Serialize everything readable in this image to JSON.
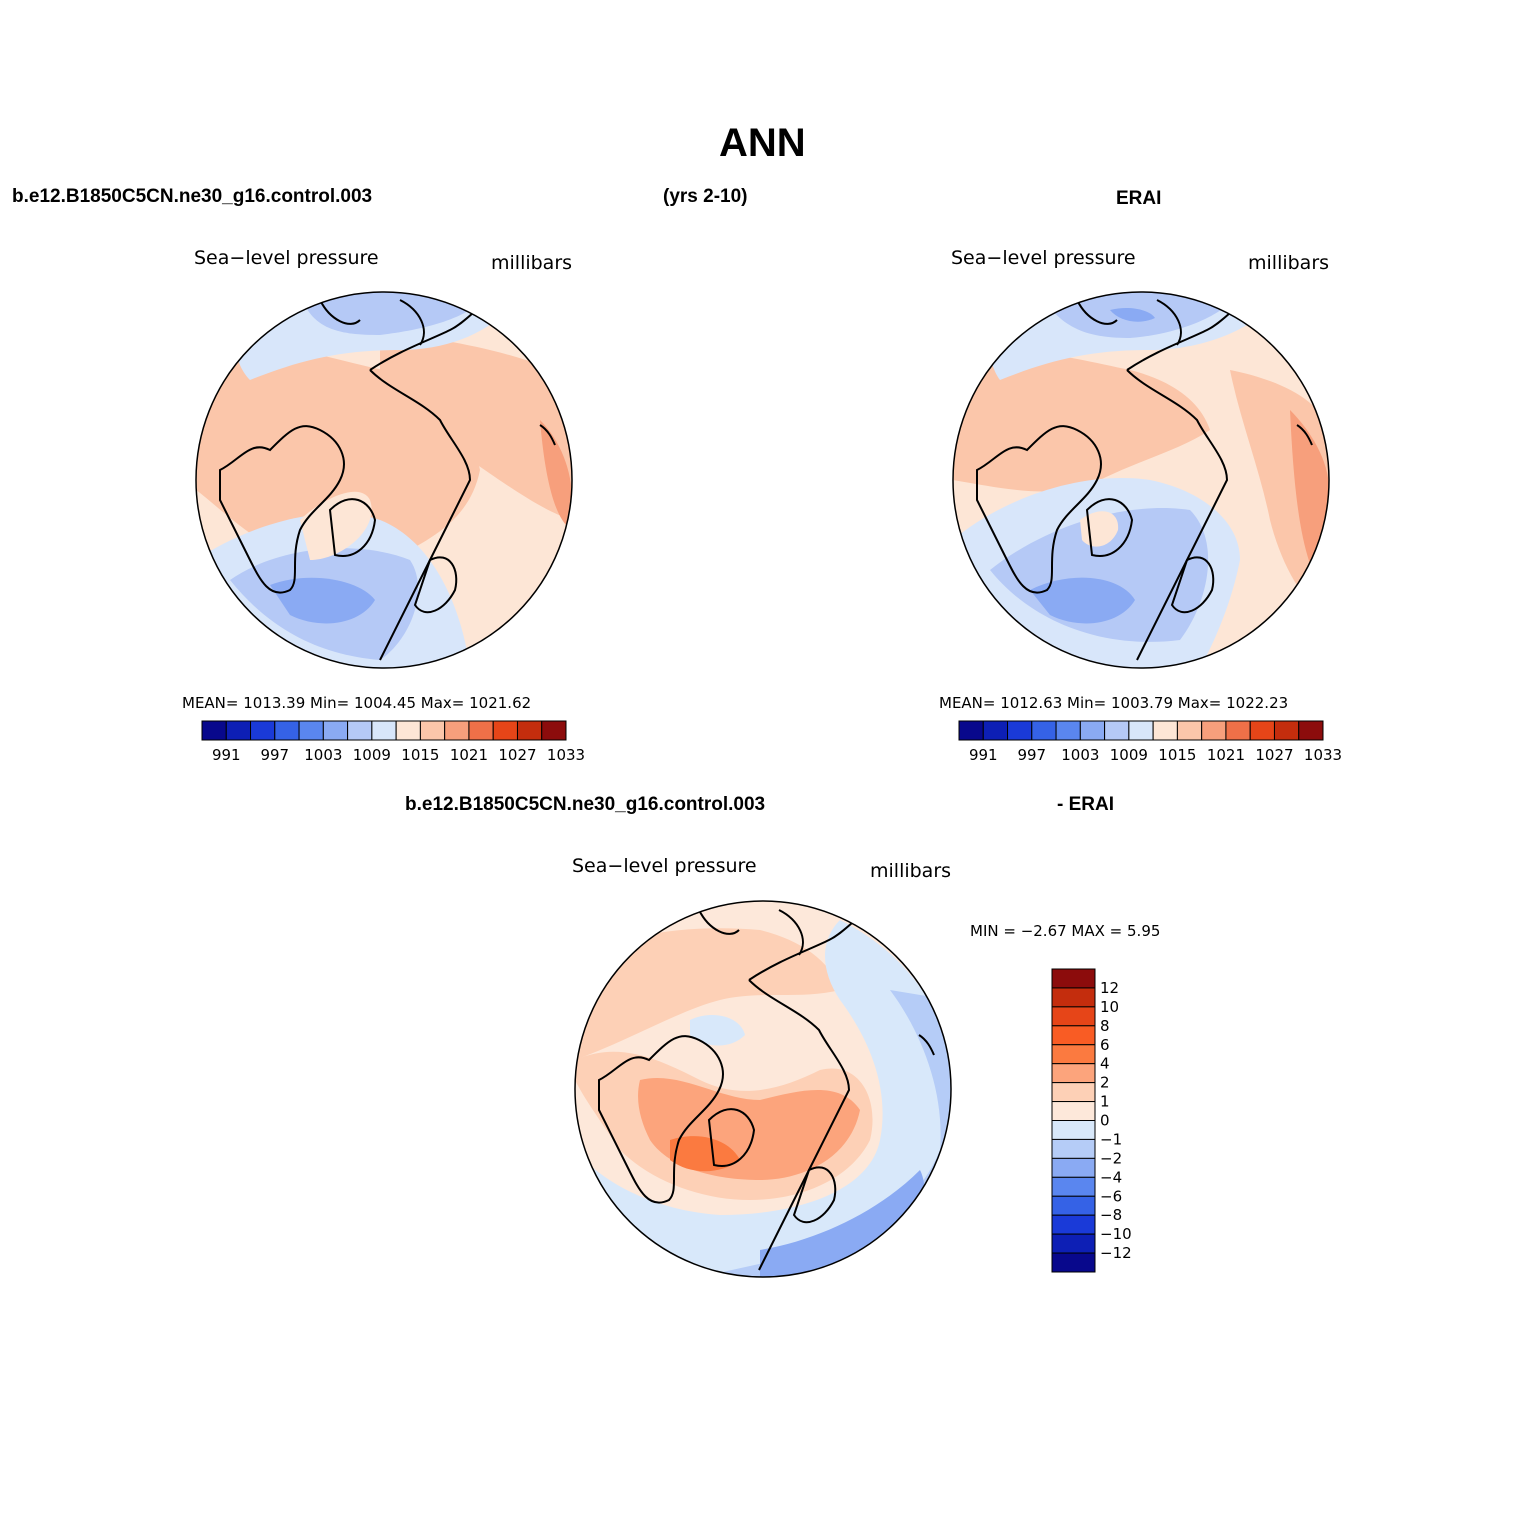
{
  "title": "ANN",
  "header": {
    "case_name": "b.e12.B1850C5CN.ne30_g16.control.003",
    "years": "(yrs 2-10)",
    "obs_name": "ERAI"
  },
  "diff_header": {
    "case_name": "b.e12.B1850C5CN.ne30_g16.control.003",
    "obs_suffix": "- ERAI"
  },
  "panels": [
    {
      "variable": "Sea−level pressure",
      "units": "millibars",
      "stats": "MEAN=  1013.39   Min=  1004.45   Max=  1021.62"
    },
    {
      "variable": "Sea−level pressure",
      "units": "millibars",
      "stats": "MEAN=  1012.63   Min=  1003.79   Max=  1022.23"
    },
    {
      "variable": "Sea−level pressure",
      "units": "millibars",
      "stats": "MIN =   −2.67  MAX =    5.95"
    }
  ],
  "colorbar_main": {
    "colors": [
      "#08088c",
      "#0d1fb5",
      "#1a3ad8",
      "#3562e6",
      "#5a86ef",
      "#8aaaf3",
      "#b5c9f6",
      "#d8e6fa",
      "#fde6d6",
      "#fbc6aa",
      "#f79f7c",
      "#ef7048",
      "#e64518",
      "#c42d0d",
      "#8c0c0c"
    ],
    "labels": [
      "991",
      "997",
      "1003",
      "1009",
      "1015",
      "1021",
      "1027",
      "1033"
    ]
  },
  "colorbar_diff": {
    "colors": [
      "#8c0c0c",
      "#c42d0d",
      "#e64518",
      "#f95c24",
      "#fb7a40",
      "#fca47c",
      "#fdd0b6",
      "#fde8da",
      "#d8e8fa",
      "#b5ccf7",
      "#8aaaf3",
      "#5a86ef",
      "#3562e6",
      "#1a3ad8",
      "#0d1fb5",
      "#08088c"
    ],
    "labels": [
      "12",
      "10",
      "8",
      "6",
      "4",
      "2",
      "1",
      "0",
      "−1",
      "−2",
      "−4",
      "−6",
      "−8",
      "−10",
      "−12"
    ]
  }
}
